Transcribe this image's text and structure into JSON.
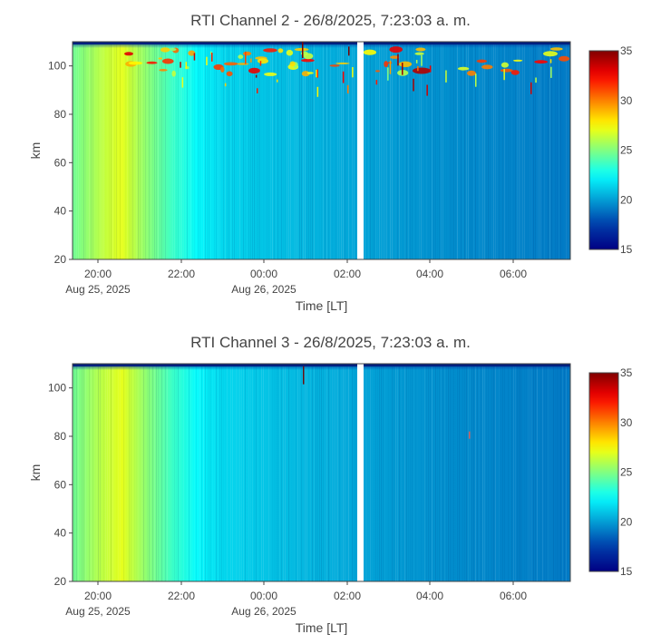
{
  "chart_data": [
    {
      "type": "heatmap",
      "title": "RTI Channel 2 - 26/8/2025, 7:23:03 a. m.",
      "xlabel": "Time [LT]",
      "ylabel": "km",
      "x_ticks": [
        "20:00",
        "22:00",
        "00:00",
        "02:00",
        "04:00",
        "06:00"
      ],
      "x_tick_dates": [
        "Aug 25, 2025",
        "",
        "Aug 26, 2025",
        "",
        "",
        ""
      ],
      "y_ticks": [
        "20",
        "40",
        "60",
        "80",
        "100"
      ],
      "ylim": [
        20,
        110
      ],
      "colorbar": {
        "min": 15,
        "max": 35,
        "ticks": [
          "15",
          "20",
          "25",
          "30",
          "35"
        ],
        "colorscale": "jet"
      },
      "data_gap": "02:15–02:30"
    },
    {
      "type": "heatmap",
      "title": "RTI Channel 3 - 26/8/2025, 7:23:03 a. m.",
      "xlabel": "Time [LT]",
      "ylabel": "km",
      "x_ticks": [
        "20:00",
        "22:00",
        "00:00",
        "02:00",
        "04:00",
        "06:00"
      ],
      "x_tick_dates": [
        "Aug 25, 2025",
        "",
        "Aug 26, 2025",
        "",
        "",
        ""
      ],
      "y_ticks": [
        "20",
        "40",
        "60",
        "80",
        "100"
      ],
      "ylim": [
        20,
        110
      ],
      "colorbar": {
        "min": 15,
        "max": 35,
        "ticks": [
          "15",
          "20",
          "25",
          "30",
          "35"
        ],
        "colorscale": "jet"
      },
      "data_gap": "02:15–02:30"
    }
  ]
}
